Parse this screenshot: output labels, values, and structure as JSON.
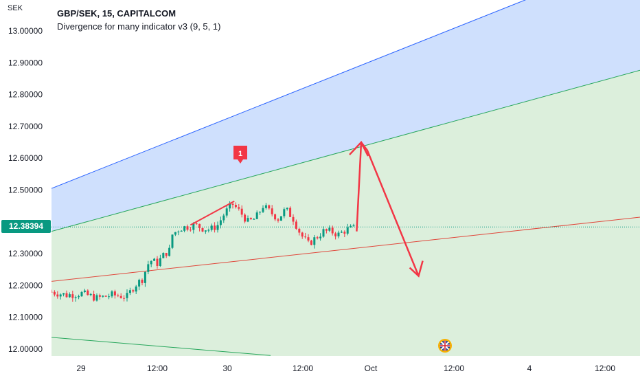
{
  "header": {
    "symbol": "GBP/SEK, 15, CAPITALCOM",
    "indicator": "Divergence for many indicator v3 (9, 5, 1)",
    "currency": "SEK"
  },
  "price_tag": {
    "value": "12.38394",
    "color": "#089981"
  },
  "colors": {
    "up": "#089981",
    "down": "#f23645",
    "upper_band": "#cfe0fd",
    "lower_band": "#dcefdc",
    "blue_line": "#2962ff",
    "green_line": "#26a65b",
    "red_line": "#e0463a",
    "arrow": "#f23645"
  },
  "chart_data": {
    "type": "candlestick",
    "title": "GBP/SEK, 15, CAPITALCOM",
    "ylabel": "SEK",
    "ylim": [
      11.99,
      13.07
    ],
    "y_ticks": [
      "13.00000",
      "12.90000",
      "12.80000",
      "12.70000",
      "12.60000",
      "12.50000",
      "12.30000",
      "12.20000",
      "12.10000",
      "12.00000"
    ],
    "x_ticks": [
      "29",
      "12:00",
      "30",
      "12:00",
      "Oct",
      "12:00",
      "4",
      "12:00"
    ],
    "last_price": 12.38394,
    "signal_label": "1",
    "indicator": "Divergence for many indicator v3 (9, 5, 1)",
    "channel": {
      "upper_line": {
        "from": [
          0,
          12.505
        ],
        "to": [
          31.5,
          13.1
        ]
      },
      "middle_line": {
        "from": [
          0,
          12.37
        ],
        "to": [
          40,
          12.89
        ]
      },
      "lower_line": {
        "from": [
          0,
          12.213
        ],
        "to": [
          40,
          12.42
        ]
      },
      "bottom_line": {
        "from": [
          0,
          12.037
        ],
        "to": [
          14.5,
          11.98
        ]
      }
    },
    "divergence_line": {
      "from": [
        9.2,
        12.39
      ],
      "to": [
        12.1,
        12.465
      ]
    },
    "projection": [
      [
        20.2,
        12.37
      ],
      [
        20.5,
        12.65
      ],
      [
        20.9,
        12.625
      ],
      [
        24.3,
        12.23
      ]
    ],
    "segments": [
      [
        0,
        12.18
      ],
      [
        1,
        12.17
      ],
      [
        2,
        12.175
      ],
      [
        3,
        12.16
      ],
      [
        4,
        12.17
      ],
      [
        5,
        12.165
      ],
      [
        5.5,
        12.2
      ],
      [
        6,
        12.22
      ],
      [
        6.5,
        12.28
      ],
      [
        7,
        12.27
      ],
      [
        7.5,
        12.3
      ],
      [
        7.8,
        12.31
      ],
      [
        8,
        12.36
      ],
      [
        8.5,
        12.38
      ],
      [
        9,
        12.385
      ],
      [
        9.5,
        12.39
      ],
      [
        10,
        12.38
      ],
      [
        10.5,
        12.375
      ],
      [
        11,
        12.39
      ],
      [
        11.5,
        12.43
      ],
      [
        12,
        12.455
      ],
      [
        12.5,
        12.43
      ],
      [
        13,
        12.4
      ],
      [
        13.5,
        12.41
      ],
      [
        14,
        12.45
      ],
      [
        14.5,
        12.43
      ],
      [
        15,
        12.41
      ],
      [
        15.5,
        12.44
      ],
      [
        16,
        12.41
      ],
      [
        16.5,
        12.36
      ],
      [
        17,
        12.33
      ],
      [
        17.5,
        12.35
      ],
      [
        18,
        12.37
      ],
      [
        18.5,
        12.37
      ],
      [
        19,
        12.36
      ],
      [
        19.5,
        12.375
      ],
      [
        20,
        12.38
      ]
    ]
  }
}
